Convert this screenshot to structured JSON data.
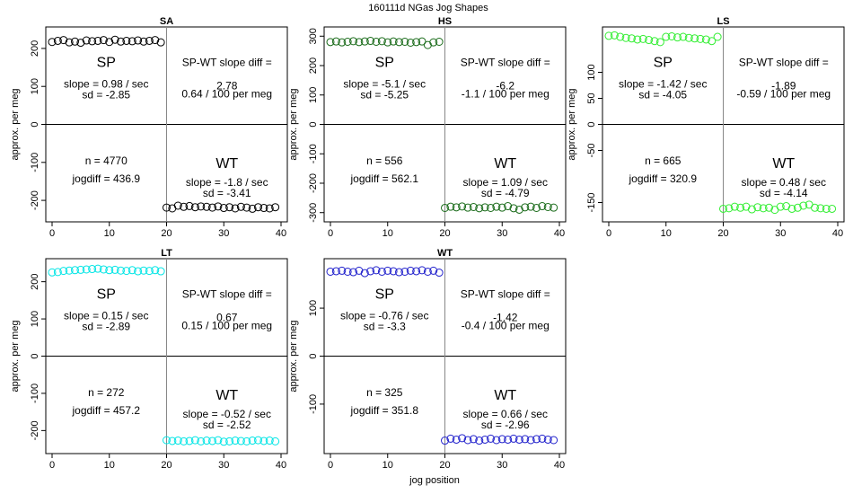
{
  "figure": {
    "title": "160111d    NGas Jog Shapes",
    "xlabel": "jog position",
    "ylabel": "approx. per meg"
  },
  "labels": {
    "sp": "SP",
    "wt": "WT",
    "diff_header": "SP-WT slope diff ="
  },
  "chart_data": [
    {
      "type": "scatter",
      "title": "SA",
      "color": "#000000",
      "xlim": [
        0,
        40
      ],
      "ylim": [
        -240,
        240
      ],
      "yticks": [
        -200,
        -100,
        0,
        100,
        200
      ],
      "yticklabels": [
        "-200",
        "-100",
        "0",
        "100",
        "200"
      ],
      "xticks": [
        0,
        10,
        20,
        30,
        40
      ],
      "xticklabels": [
        "0",
        "10",
        "20",
        "30",
        "40"
      ],
      "series": [
        {
          "x": [
            0,
            1,
            2,
            3,
            4,
            5,
            6,
            7,
            8,
            9,
            10,
            11,
            12,
            13,
            14,
            15,
            16,
            17,
            18,
            19
          ],
          "y": [
            217,
            220,
            222,
            216,
            218,
            215,
            221,
            219,
            220,
            222,
            217,
            223,
            218,
            220,
            219,
            221,
            218,
            220,
            222,
            216
          ]
        },
        {
          "x": [
            20,
            21,
            22,
            23,
            24,
            25,
            26,
            27,
            28,
            29,
            30,
            31,
            32,
            33,
            34,
            35,
            36,
            37,
            38,
            39
          ],
          "y": [
            -219,
            -221,
            -214,
            -217,
            -215,
            -218,
            -216,
            -217,
            -219,
            -216,
            -220,
            -218,
            -221,
            -217,
            -219,
            -222,
            -218,
            -220,
            -221,
            -218
          ]
        }
      ],
      "sp_text": {
        "slope": "slope = 0.98 / sec",
        "sd": "sd = -2.85"
      },
      "diff_text": {
        "value": "2.78",
        "per_meg": "0.64 / 100 per meg"
      },
      "stats_text": {
        "n": "n = 4770",
        "jogdiff": "jogdiff = 436.9"
      },
      "wt_text": {
        "slope": "slope = -1.8 / sec",
        "sd": "sd = -3.41"
      }
    },
    {
      "type": "scatter",
      "title": "HS",
      "color": "#1a6b1a",
      "xlim": [
        0,
        40
      ],
      "ylim": [
        -310,
        310
      ],
      "yticks": [
        -300,
        -200,
        -100,
        0,
        100,
        200,
        300
      ],
      "yticklabels": [
        "-300",
        "-200",
        "-100",
        "0",
        "100",
        "200",
        "300"
      ],
      "xticks": [
        0,
        10,
        20,
        30,
        40
      ],
      "xticklabels": [
        "0",
        "10",
        "20",
        "30",
        "40"
      ],
      "series": [
        {
          "x": [
            0,
            1,
            2,
            3,
            4,
            5,
            6,
            7,
            8,
            9,
            10,
            11,
            12,
            13,
            14,
            15,
            16,
            17,
            18,
            19
          ],
          "y": [
            280,
            282,
            279,
            281,
            283,
            280,
            282,
            284,
            281,
            283,
            279,
            282,
            280,
            281,
            278,
            280,
            282,
            270,
            279,
            281
          ]
        },
        {
          "x": [
            20,
            21,
            22,
            23,
            24,
            25,
            26,
            27,
            28,
            29,
            30,
            31,
            32,
            33,
            34,
            35,
            36,
            37,
            38,
            39
          ],
          "y": [
            -284,
            -280,
            -282,
            -279,
            -283,
            -281,
            -285,
            -282,
            -284,
            -280,
            -283,
            -278,
            -285,
            -290,
            -282,
            -280,
            -284,
            -278,
            -281,
            -283
          ]
        }
      ],
      "sp_text": {
        "slope": "slope = -5.1 / sec",
        "sd": "sd = -5.25"
      },
      "diff_text": {
        "value": "-6.2",
        "per_meg": "-1.1 / 100 per meg"
      },
      "stats_text": {
        "n": "n = 556",
        "jogdiff": "jogdiff = 562.1"
      },
      "wt_text": {
        "slope": "slope = 1.09 / sec",
        "sd": "sd = -4.79"
      }
    },
    {
      "type": "scatter",
      "title": "LS",
      "color": "#33ee33",
      "xlim": [
        0,
        40
      ],
      "ylim": [
        -175,
        175
      ],
      "yticks": [
        -150,
        -50,
        0,
        50,
        100
      ],
      "yticklabels": [
        "-150",
        "-50",
        "0",
        "50",
        "100"
      ],
      "xticks": [
        0,
        10,
        20,
        30,
        40
      ],
      "xticklabels": [
        "0",
        "10",
        "20",
        "30",
        "40"
      ],
      "series": [
        {
          "x": [
            0,
            1,
            2,
            3,
            4,
            5,
            6,
            7,
            8,
            9,
            10,
            11,
            12,
            13,
            14,
            15,
            16,
            17,
            18,
            19
          ],
          "y": [
            170,
            171,
            168,
            166,
            165,
            163,
            164,
            162,
            160,
            158,
            168,
            169,
            167,
            168,
            166,
            165,
            164,
            163,
            160,
            168
          ]
        },
        {
          "x": [
            20,
            21,
            22,
            23,
            24,
            25,
            26,
            27,
            28,
            29,
            30,
            31,
            32,
            33,
            34,
            35,
            36,
            37,
            38,
            39
          ],
          "y": [
            -162,
            -161,
            -158,
            -160,
            -158,
            -163,
            -159,
            -161,
            -160,
            -164,
            -158,
            -157,
            -162,
            -160,
            -156,
            -154,
            -160,
            -161,
            -162,
            -162
          ]
        }
      ],
      "sp_text": {
        "slope": "slope = -1.42 / sec",
        "sd": "sd = -4.05"
      },
      "diff_text": {
        "value": "-1.89",
        "per_meg": "-0.59 / 100 per meg"
      },
      "stats_text": {
        "n": "n = 665",
        "jogdiff": "jogdiff = 320.9"
      },
      "wt_text": {
        "slope": "slope = 0.48 / sec",
        "sd": "sd = -4.14"
      }
    },
    {
      "type": "scatter",
      "title": "LT",
      "color": "#00e5e5",
      "xlim": [
        0,
        40
      ],
      "ylim": [
        -245,
        245
      ],
      "yticks": [
        -200,
        -100,
        0,
        100,
        200
      ],
      "yticklabels": [
        "-200",
        "-100",
        "0",
        "100",
        "200"
      ],
      "xticks": [
        0,
        10,
        20,
        30,
        40
      ],
      "xticklabels": [
        "0",
        "10",
        "20",
        "30",
        "40"
      ],
      "series": [
        {
          "x": [
            0,
            1,
            2,
            3,
            4,
            5,
            6,
            7,
            8,
            9,
            10,
            11,
            12,
            13,
            14,
            15,
            16,
            17,
            18,
            19
          ],
          "y": [
            225,
            226,
            229,
            230,
            231,
            232,
            233,
            234,
            235,
            233,
            231,
            232,
            230,
            229,
            231,
            228,
            230,
            229,
            231,
            228
          ]
        },
        {
          "x": [
            20,
            21,
            22,
            23,
            24,
            25,
            26,
            27,
            28,
            29,
            30,
            31,
            32,
            33,
            34,
            35,
            36,
            37,
            38,
            39
          ],
          "y": [
            -226,
            -228,
            -227,
            -229,
            -228,
            -226,
            -229,
            -227,
            -228,
            -226,
            -230,
            -229,
            -227,
            -228,
            -229,
            -227,
            -226,
            -228,
            -227,
            -229
          ]
        }
      ],
      "sp_text": {
        "slope": "slope = 0.15 / sec",
        "sd": "sd = -2.89"
      },
      "diff_text": {
        "value": "0.67",
        "per_meg": "0.15 / 100 per meg"
      },
      "stats_text": {
        "n": "n = 272",
        "jogdiff": "jogdiff = 457.2"
      },
      "wt_text": {
        "slope": "slope = -0.52 / sec",
        "sd": "sd = -2.52"
      }
    },
    {
      "type": "scatter",
      "title": "WT",
      "color": "#2222cc",
      "xlim": [
        0,
        40
      ],
      "ylim": [
        -190,
        190
      ],
      "yticks": [
        -100,
        0,
        100
      ],
      "yticklabels": [
        "-100",
        "0",
        "100"
      ],
      "xticks": [
        0,
        10,
        20,
        30,
        40
      ],
      "xticklabels": [
        "0",
        "10",
        "20",
        "30",
        "40"
      ],
      "series": [
        {
          "x": [
            0,
            1,
            2,
            3,
            4,
            5,
            6,
            7,
            8,
            9,
            10,
            11,
            12,
            13,
            14,
            15,
            16,
            17,
            18,
            19
          ],
          "y": [
            176,
            177,
            178,
            176,
            175,
            178,
            173,
            177,
            179,
            176,
            178,
            177,
            175,
            176,
            178,
            177,
            179,
            176,
            178,
            174
          ]
        },
        {
          "x": [
            20,
            21,
            22,
            23,
            24,
            25,
            26,
            27,
            28,
            29,
            30,
            31,
            32,
            33,
            34,
            35,
            36,
            37,
            38,
            39
          ],
          "y": [
            -176,
            -172,
            -174,
            -171,
            -175,
            -173,
            -176,
            -174,
            -172,
            -175,
            -173,
            -174,
            -172,
            -174,
            -173,
            -175,
            -173,
            -172,
            -174,
            -175
          ]
        }
      ],
      "sp_text": {
        "slope": "slope = -0.76 / sec",
        "sd": "sd = -3.3"
      },
      "diff_text": {
        "value": "-1.42",
        "per_meg": "-0.4 / 100 per meg"
      },
      "stats_text": {
        "n": "n = 325",
        "jogdiff": "jogdiff = 351.8"
      },
      "wt_text": {
        "slope": "slope = 0.66 / sec",
        "sd": "sd = -2.96"
      }
    }
  ]
}
